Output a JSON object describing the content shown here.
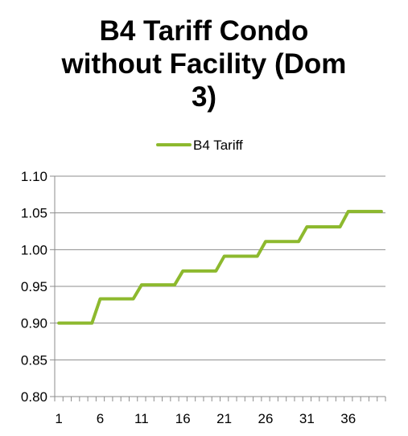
{
  "chart_data": {
    "type": "line",
    "title_lines": [
      "B4 Tariff Condo",
      "without Facility (Dom",
      "3)"
    ],
    "xlabel": "",
    "ylabel": "",
    "x_tick_labels": [
      "1",
      "6",
      "11",
      "16",
      "21",
      "26",
      "31",
      "36"
    ],
    "x": [
      1,
      2,
      3,
      4,
      5,
      6,
      7,
      8,
      9,
      10,
      11,
      12,
      13,
      14,
      15,
      16,
      17,
      18,
      19,
      20,
      21,
      22,
      23,
      24,
      25,
      26,
      27,
      28,
      29,
      30,
      31,
      32,
      33,
      34,
      35,
      36,
      37,
      38,
      39,
      40
    ],
    "xlim": [
      1,
      40
    ],
    "ylim": [
      0.8,
      1.1
    ],
    "y_ticks": [
      0.8,
      0.85,
      0.9,
      0.95,
      1.0,
      1.05,
      1.1
    ],
    "y_tick_labels": [
      "0.80",
      "0.85",
      "0.90",
      "0.95",
      "1.00",
      "1.05",
      "1.10"
    ],
    "grid": true,
    "legend_position": "top",
    "series": [
      {
        "name": "B4 Tariff",
        "color": "#8DB92E",
        "values": [
          0.9,
          0.9,
          0.9,
          0.9,
          0.9,
          0.933,
          0.933,
          0.933,
          0.933,
          0.933,
          0.952,
          0.952,
          0.952,
          0.952,
          0.952,
          0.971,
          0.971,
          0.971,
          0.971,
          0.971,
          0.991,
          0.991,
          0.991,
          0.991,
          0.991,
          1.011,
          1.011,
          1.011,
          1.011,
          1.011,
          1.031,
          1.031,
          1.031,
          1.031,
          1.031,
          1.052,
          1.052,
          1.052,
          1.052,
          1.052
        ]
      }
    ]
  }
}
